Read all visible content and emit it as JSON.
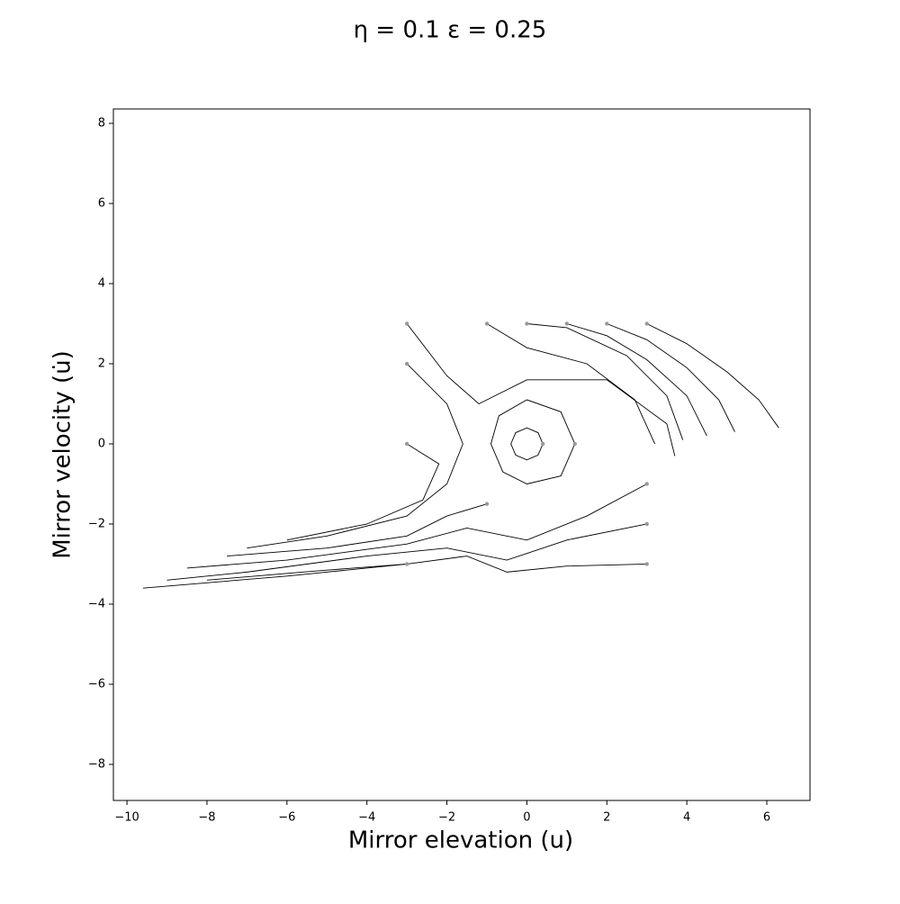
{
  "chart_data": {
    "type": "phase-portrait",
    "title": "η = 0.1  ε = 0.25",
    "x_label": "Mirror elevation  (u)",
    "y_label": "Mirror velocity  (u̇)",
    "xlim": [
      -10.34,
      7.08
    ],
    "ylim": [
      -8.9,
      8.36
    ],
    "xticks": [
      {
        "value": -10,
        "label": "−10"
      },
      {
        "value": -8,
        "label": "−8"
      },
      {
        "value": -6,
        "label": "−6"
      },
      {
        "value": -4,
        "label": "−4"
      },
      {
        "value": -2,
        "label": "−2"
      },
      0,
      2,
      4,
      6
    ],
    "yticks": [
      {
        "value": -8,
        "label": "−8"
      },
      {
        "value": -6,
        "label": "−6"
      },
      {
        "value": -4,
        "label": "−4"
      },
      {
        "value": -2,
        "label": "−2"
      },
      0,
      2,
      4,
      6,
      8
    ],
    "start_color": "#999999",
    "series": [
      {
        "color": "#000000",
        "x": [
          3,
          4,
          5,
          5.8,
          6.3
        ],
        "values": [
          3,
          2.5,
          1.8,
          1.1,
          0.4
        ]
      },
      {
        "color": "#000000",
        "x": [
          2,
          3,
          4,
          4.8,
          5.2
        ],
        "values": [
          3,
          2.6,
          1.9,
          1.1,
          0.3
        ]
      },
      {
        "color": "#000000",
        "x": [
          1,
          2,
          3,
          4,
          4.5
        ],
        "values": [
          3,
          2.7,
          2.1,
          1.2,
          0.2
        ]
      },
      {
        "color": "#000000",
        "x": [
          0,
          1,
          2.5,
          3.5,
          3.9
        ],
        "values": [
          3,
          2.9,
          2.2,
          1.2,
          0.1
        ]
      },
      {
        "color": "#000000",
        "x": [
          -1,
          0,
          1.5,
          2.7,
          3.2
        ],
        "values": [
          3,
          2.4,
          2.0,
          1.1,
          0
        ]
      },
      {
        "color": "#000000",
        "x": [
          0.4,
          0.28,
          0,
          -0.28,
          -0.4,
          -0.28,
          0,
          0.28,
          0.4
        ],
        "values": [
          0,
          0.28,
          0.4,
          0.28,
          0,
          -0.28,
          -0.4,
          -0.28,
          0
        ]
      },
      {
        "color": "#000000",
        "x": [
          1.2,
          0.85,
          0,
          -0.7,
          -0.9,
          -0.6,
          0,
          0.85,
          1.2
        ],
        "values": [
          0,
          0.8,
          1.1,
          0.7,
          0,
          -0.7,
          -1.0,
          -0.8,
          0
        ]
      },
      {
        "color": "#000000",
        "x": [
          3,
          1,
          -0.5,
          -1.5,
          -3,
          -6,
          -9.6
        ],
        "values": [
          -3,
          -3.05,
          -3.2,
          -2.8,
          -3.0,
          -3.3,
          -3.6
        ]
      },
      {
        "color": "#000000",
        "x": [
          3,
          1,
          -0.5,
          -2,
          -4,
          -7,
          -9
        ],
        "values": [
          -2,
          -2.4,
          -2.9,
          -2.6,
          -2.8,
          -3.2,
          -3.4
        ]
      },
      {
        "color": "#000000",
        "x": [
          3,
          1.5,
          0,
          -1.5,
          -3,
          -6,
          -8.5
        ],
        "values": [
          -1,
          -1.8,
          -2.4,
          -2.1,
          -2.5,
          -2.9,
          -3.1
        ]
      },
      {
        "color": "#000000",
        "x": [
          -3,
          -5,
          -8
        ],
        "values": [
          -3,
          -3.15,
          -3.4
        ]
      },
      {
        "color": "#000000",
        "x": [
          -1,
          -2,
          -3,
          -5,
          -7.5
        ],
        "values": [
          -1.5,
          -1.8,
          -2.3,
          -2.6,
          -2.8
        ]
      },
      {
        "color": "#000000",
        "x": [
          -3,
          -2,
          -1.6,
          -2,
          -3,
          -5,
          -7
        ],
        "values": [
          2,
          1,
          0,
          -1,
          -1.8,
          -2.3,
          -2.6
        ]
      },
      {
        "color": "#000000",
        "x": [
          -3,
          -2.2,
          -2.6,
          -4,
          -6
        ],
        "values": [
          0,
          -0.5,
          -1.4,
          -2.0,
          -2.4
        ]
      },
      {
        "color": "#000000",
        "x": [
          -3,
          -2,
          -1.2,
          0,
          2,
          3.5,
          3.7
        ],
        "values": [
          3,
          1.7,
          1.0,
          1.6,
          1.6,
          0.5,
          -0.3
        ]
      }
    ]
  }
}
